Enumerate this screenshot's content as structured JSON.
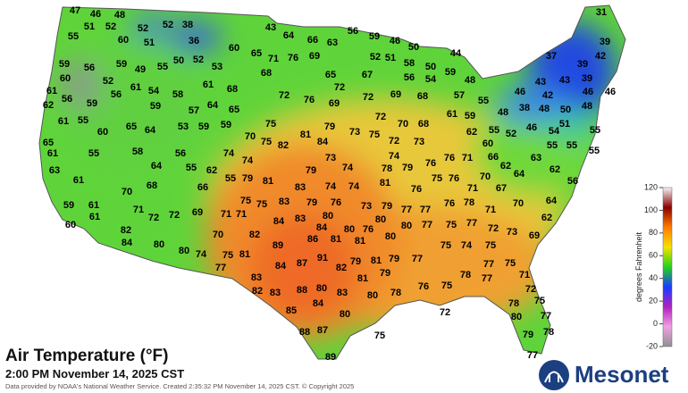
{
  "map": {
    "title": "Air Temperature (°F)",
    "subtitle": "2:00 PM November 14, 2025 CST",
    "credit": "Data provided by NOAA's National Weather Service. Created 2:35:32 PM November 14, 2025 CST. © Copyright 2025",
    "logo": "Mesonet",
    "readings": [
      47,
      46,
      48,
      51,
      52,
      52,
      52,
      38,
      55,
      60,
      51,
      36,
      60,
      43,
      64,
      66,
      63,
      56,
      59,
      46,
      50,
      44,
      31,
      39,
      37,
      42,
      39,
      59,
      56,
      59,
      49,
      55,
      50,
      52,
      53,
      65,
      71,
      76,
      69,
      52,
      51,
      58,
      50,
      59,
      48,
      60,
      52,
      61,
      54,
      58,
      61,
      68,
      68,
      65,
      67,
      56,
      54,
      43,
      43,
      39,
      61,
      56,
      59,
      56,
      59,
      57,
      64,
      65,
      72,
      76,
      69,
      72,
      72,
      69,
      68,
      57,
      55,
      46,
      42,
      46,
      46,
      62,
      55,
      48,
      38,
      48,
      50,
      48,
      61,
      60,
      65,
      64,
      53,
      59,
      59,
      75,
      72,
      70,
      68,
      61,
      59,
      51,
      55,
      65,
      81,
      84,
      79,
      73,
      75,
      72,
      73,
      62,
      55,
      52,
      46,
      54,
      70,
      75,
      82,
      74,
      60,
      55,
      55,
      61,
      55,
      58,
      56,
      74,
      74,
      73,
      76,
      71,
      66,
      62,
      63,
      55,
      63,
      64,
      55,
      62,
      79,
      74,
      78,
      79,
      76,
      61,
      70,
      64,
      62,
      79,
      81,
      83,
      74,
      74,
      81,
      75,
      76,
      67,
      71,
      56,
      68,
      66,
      55,
      70,
      76,
      59,
      61,
      71,
      72,
      72,
      69,
      71,
      71,
      75,
      75,
      83,
      79,
      76,
      73,
      79,
      77,
      77,
      76,
      78,
      64,
      70,
      71,
      60,
      61,
      84,
      83,
      84,
      80,
      80,
      80,
      77,
      75,
      77,
      72,
      73,
      62,
      69,
      82,
      70,
      86,
      80,
      76,
      84,
      80,
      82,
      89,
      81,
      81,
      80,
      75,
      74,
      75,
      80,
      74,
      75,
      81,
      77,
      82,
      84,
      87,
      91,
      79,
      81,
      79,
      77,
      77,
      75,
      78,
      77,
      81,
      79,
      83,
      82,
      83,
      88,
      80,
      83,
      80,
      78,
      76,
      75,
      71,
      72,
      85,
      84,
      80,
      72,
      75,
      78,
      77,
      80,
      88,
      87,
      75,
      79,
      78,
      89,
      77
    ],
    "colorbar": {
      "label": "degrees Fahrenheit",
      "range": [
        -20,
        120
      ],
      "ticks": [
        120,
        100,
        80,
        60,
        40,
        20,
        0,
        -20
      ],
      "colors": [
        "#f4f4f4",
        "#8a0000",
        "#ff7a00",
        "#f7e000",
        "#22d41c",
        "#1a3cff",
        "#b020c0",
        "#f0a0e0",
        "#909090"
      ]
    }
  }
}
